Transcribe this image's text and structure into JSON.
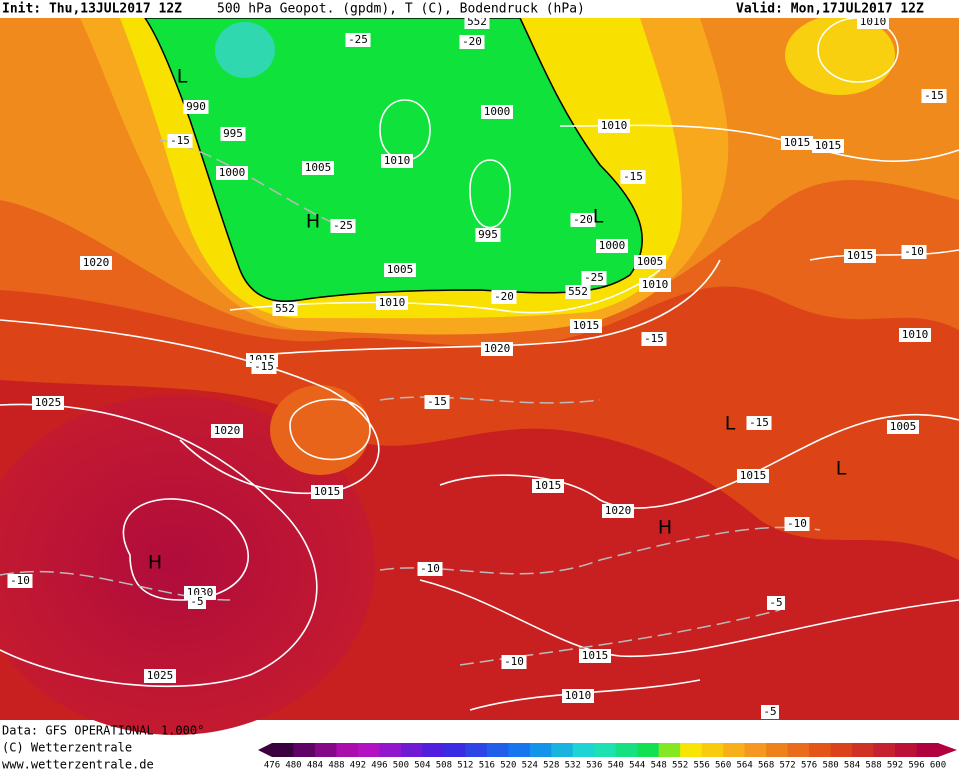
{
  "header": {
    "init": "Init: Thu,13JUL2017 12Z",
    "title": "500 hPa Geopot. (gpdm), T (C), Bodendruck (hPa)",
    "valid": "Valid: Mon,17JUL2017 12Z"
  },
  "labels": [
    "990",
    "995",
    "1000",
    "1005",
    "1010",
    "1000",
    "995",
    "1005",
    "1010",
    "1010",
    "1015",
    "1015",
    "1010",
    "1000",
    "1005",
    "1010",
    "1015",
    "1020",
    "1020",
    "1015",
    "1025",
    "1020",
    "1015",
    "1015",
    "1020",
    "1015",
    "1005",
    "1010",
    "1015",
    "1030",
    "1025",
    "1015",
    "1010",
    "-25",
    "-20",
    "-15",
    "-25",
    "-15",
    "-20",
    "-25",
    "-20",
    "-15",
    "-15",
    "-15",
    "-15",
    "-10",
    "-10",
    "-10",
    "-5",
    "-10",
    "-5",
    "-5",
    "-15",
    "-10",
    "552",
    "552",
    "552"
  ],
  "centers": [
    "L",
    "H",
    "L",
    "L",
    "L",
    "H",
    "H"
  ],
  "footer": {
    "data": "Data: GFS OPERATIONAL 1.000°",
    "copyright": "(C) Wetterzentrale",
    "url": "www.wetterzentrale.de"
  },
  "colorbar": {
    "labels": [
      476,
      480,
      484,
      488,
      492,
      496,
      500,
      504,
      508,
      512,
      516,
      520,
      524,
      528,
      532,
      536,
      540,
      544,
      548,
      552,
      556,
      560,
      564,
      568,
      572,
      576,
      580,
      584,
      588,
      592,
      596,
      600
    ]
  }
}
